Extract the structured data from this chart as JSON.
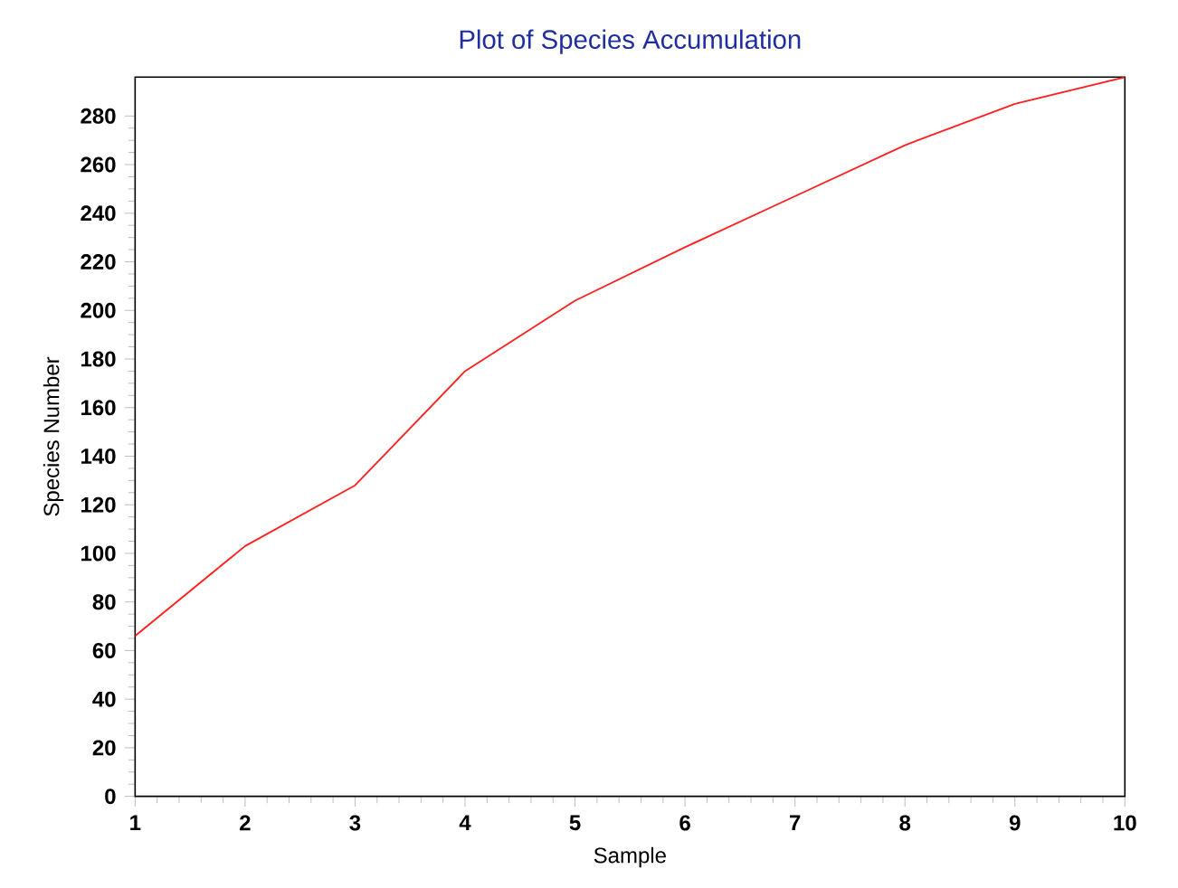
{
  "chart_data": {
    "type": "line",
    "title": "Plot of Species Accumulation",
    "xlabel": "Sample",
    "ylabel": "Species Number",
    "x": [
      1,
      2,
      3,
      4,
      5,
      6,
      7,
      8,
      9,
      10
    ],
    "series": [
      {
        "color": "#ff2020",
        "values": [
          66,
          103,
          128,
          175,
          204,
          226,
          247,
          268,
          285,
          296
        ]
      }
    ],
    "xlim": [
      1,
      10
    ],
    "ylim": [
      0,
      296
    ],
    "xticks": [
      1,
      2,
      3,
      4,
      5,
      6,
      7,
      8,
      9,
      10
    ],
    "yticks": [
      0,
      20,
      40,
      60,
      80,
      100,
      120,
      140,
      160,
      180,
      200,
      220,
      240,
      260,
      280
    ],
    "grid": false,
    "legend": false,
    "marker": "none",
    "line_style": "solid"
  }
}
